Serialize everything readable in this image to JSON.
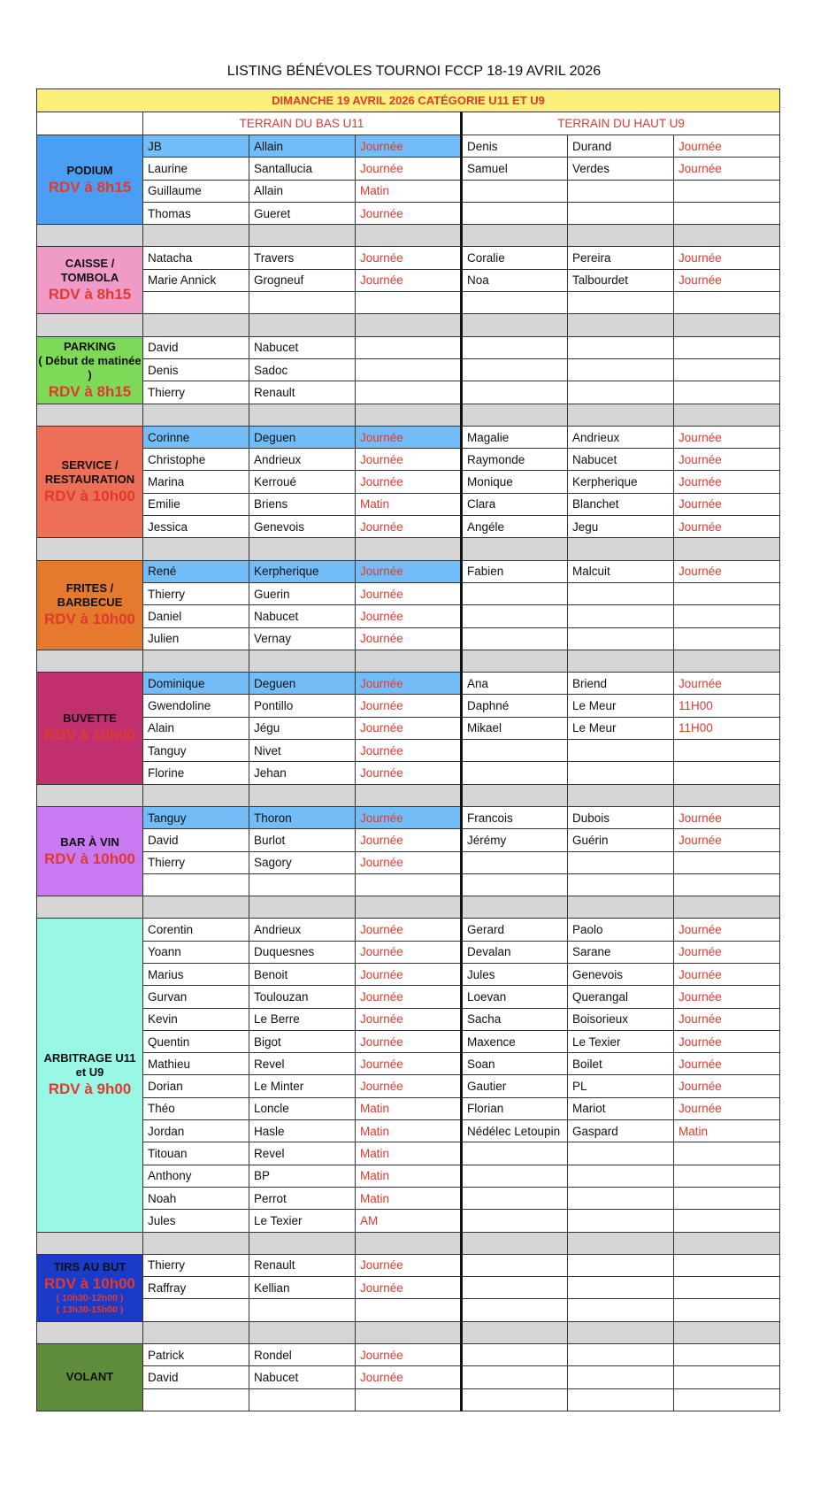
{
  "title": "LISTING BÉNÉVOLES TOURNOI FCCP 18-19 AVRIL 2026",
  "day_header": "DIMANCHE 19 AVRIL 2026 CATÉGORIE U11 ET U9",
  "terrains": [
    "TERRAIN DU BAS U11",
    "TERRAIN DU HAUT U9"
  ],
  "colors": {
    "accent_red": "#e03a2f",
    "highlight_row": "#72bdf7",
    "gap_row": "#d6d6d6",
    "header": "#fdf07a"
  },
  "sections": [
    {
      "name": "PODIUM",
      "sub": "",
      "rdv": "RDV à 8h15",
      "extra": [],
      "color": "#4a9ff5",
      "highlight_first": true,
      "rows": [
        [
          "JB",
          "Allain",
          "Journée",
          "Denis",
          "Durand",
          "Journée"
        ],
        [
          "Laurine",
          "Santallucia",
          "Journée",
          "Samuel",
          "Verdes",
          "Journée"
        ],
        [
          "Guillaume",
          "Allain",
          "Matin",
          "",
          "",
          ""
        ],
        [
          "Thomas",
          "Gueret",
          "Journée",
          "",
          "",
          ""
        ]
      ]
    },
    {
      "name": "CAISSE / TOMBOLA",
      "sub": "",
      "rdv": "RDV à 8h15",
      "extra": [],
      "color": "#f09ac8",
      "highlight_first": false,
      "rows": [
        [
          "Natacha",
          "Travers",
          "Journée",
          "Coralie",
          "Pereira",
          "Journée"
        ],
        [
          "Marie Annick",
          "Grogneuf",
          "Journée",
          "Noa",
          "Talbourdet",
          "Journée"
        ],
        [
          "",
          "",
          "",
          "",
          "",
          ""
        ]
      ]
    },
    {
      "name": "PARKING",
      "sub": "( Début de matinée )",
      "rdv": "RDV à 8h15",
      "extra": [],
      "color": "#7ed957",
      "highlight_first": false,
      "rows": [
        [
          "David",
          "Nabucet",
          "",
          "",
          "",
          ""
        ],
        [
          "Denis",
          "Sadoc",
          "",
          "",
          "",
          ""
        ],
        [
          "Thierry",
          "Renault",
          "",
          "",
          "",
          ""
        ]
      ]
    },
    {
      "name": "SERVICE / RESTAURATION",
      "sub": "",
      "rdv": "RDV à 10h00",
      "extra": [],
      "color": "#ee6f57",
      "highlight_first": true,
      "rows": [
        [
          "Corinne",
          "Deguen",
          "Journée",
          "Magalie",
          "Andrieux",
          "Journée"
        ],
        [
          "Christophe",
          "Andrieux",
          "Journée",
          "Raymonde",
          "Nabucet",
          "Journée"
        ],
        [
          "Marina",
          "Kerroué",
          "Journée",
          "Monique",
          "Kerpherique",
          "Journée"
        ],
        [
          "Emilie",
          "Briens",
          "Matin",
          "Clara",
          "Blanchet",
          "Journée"
        ],
        [
          "Jessica",
          "Genevois",
          "Journée",
          "Angéle",
          "Jegu",
          "Journée"
        ]
      ]
    },
    {
      "name": "FRITES / BARBECUE",
      "sub": "",
      "rdv": "RDV à 10h00",
      "extra": [],
      "color": "#e57a2e",
      "highlight_first": true,
      "rows": [
        [
          "René",
          "Kerpherique",
          "Journée",
          "Fabien",
          "Malcuit",
          "Journée"
        ],
        [
          "Thierry",
          "Guerin",
          "Journée",
          "",
          "",
          ""
        ],
        [
          "Daniel",
          "Nabucet",
          "Journée",
          "",
          "",
          ""
        ],
        [
          "Julien",
          "Vernay",
          "Journée",
          "",
          "",
          ""
        ]
      ]
    },
    {
      "name": "BUVETTE",
      "sub": "",
      "rdv": "RDV à 10h00",
      "extra": [],
      "color": "#c0306f",
      "highlight_first": true,
      "rows": [
        [
          "Dominique",
          "Deguen",
          "Journée",
          "Ana",
          "Briend",
          "Journée"
        ],
        [
          "Gwendoline",
          "Pontillo",
          "Journée",
          "Daphné",
          "Le Meur",
          "11H00"
        ],
        [
          "Alain",
          "Jégu",
          "Journée",
          "Mikael",
          "Le Meur",
          "11H00"
        ],
        [
          "Tanguy",
          "Nivet",
          "Journée",
          "",
          "",
          ""
        ],
        [
          "Florine",
          "Jehan",
          "Journée",
          "",
          "",
          ""
        ]
      ]
    },
    {
      "name": "BAR À VIN",
      "sub": "",
      "rdv": "RDV à 10h00",
      "extra": [],
      "color": "#c97af2",
      "highlight_first": true,
      "rows": [
        [
          "Tanguy",
          "Thoron",
          "Journée",
          "Francois",
          "Dubois",
          "Journée"
        ],
        [
          "David",
          "Burlot",
          "Journée",
          "Jérémy",
          "Guérin",
          "Journée"
        ],
        [
          "Thierry",
          "Sagory",
          "Journée",
          "",
          "",
          ""
        ],
        [
          "",
          "",
          "",
          "",
          "",
          ""
        ]
      ]
    },
    {
      "name": "ARBITRAGE U11 et U9",
      "sub": "",
      "rdv": "RDV à 9h00",
      "extra": [],
      "color": "#99f7e6",
      "highlight_first": false,
      "rows": [
        [
          "Corentin",
          "Andrieux",
          "Journée",
          "Gerard",
          "Paolo",
          "Journée"
        ],
        [
          "Yoann",
          "Duquesnes",
          "Journée",
          "Devalan",
          "Sarane",
          "Journée"
        ],
        [
          "Marius",
          "Benoit",
          "Journée",
          "Jules",
          "Genevois",
          "Journée"
        ],
        [
          "Gurvan",
          "Toulouzan",
          "Journée",
          "Loevan",
          "Querangal",
          "Journée"
        ],
        [
          "Kevin",
          "Le Berre",
          "Journée",
          "Sacha",
          "Boisorieux",
          "Journée"
        ],
        [
          "Quentin",
          "Bigot",
          "Journée",
          "Maxence",
          "Le Texier",
          "Journée"
        ],
        [
          "Mathieu",
          "Revel",
          "Journée",
          "Soan",
          "Boilet",
          "Journée"
        ],
        [
          "Dorian",
          "Le Minter",
          "Journée",
          "Gautier",
          "PL",
          "Journée"
        ],
        [
          "Théo",
          "Loncle",
          "Matin",
          "Florian",
          "Mariot",
          "Journée"
        ],
        [
          "Jordan",
          "Hasle",
          "Matin",
          "Nédélec Letoupin",
          "Gaspard",
          "Matin"
        ],
        [
          "Titouan",
          "Revel",
          "Matin",
          "",
          "",
          ""
        ],
        [
          "Anthony",
          "BP",
          "Matin",
          "",
          "",
          ""
        ],
        [
          "Noah",
          "Perrot",
          "Matin",
          "",
          "",
          ""
        ],
        [
          "Jules",
          "Le Texier",
          "AM",
          "",
          "",
          ""
        ]
      ]
    },
    {
      "name": "TIRS AU BUT",
      "sub": "",
      "rdv": "RDV à 10h00",
      "extra": [
        "( 10h30-12h00 )",
        "( 13h30-15h00 )"
      ],
      "color": "#1a3bc8",
      "highlight_first": false,
      "rows": [
        [
          "Thierry",
          "Renault",
          "Journée",
          "",
          "",
          ""
        ],
        [
          "Raffray",
          "Kellian",
          "Journée",
          "",
          "",
          ""
        ],
        [
          "",
          "",
          "",
          "",
          "",
          ""
        ]
      ]
    },
    {
      "name": "VOLANT",
      "sub": "",
      "rdv": "",
      "extra": [],
      "color": "#5e8c3a",
      "highlight_first": false,
      "rows": [
        [
          "Patrick",
          "Rondel",
          "Journée",
          "",
          "",
          ""
        ],
        [
          "David",
          "Nabucet",
          "Journée",
          "",
          "",
          ""
        ],
        [
          "",
          "",
          "",
          "",
          "",
          ""
        ]
      ]
    }
  ]
}
